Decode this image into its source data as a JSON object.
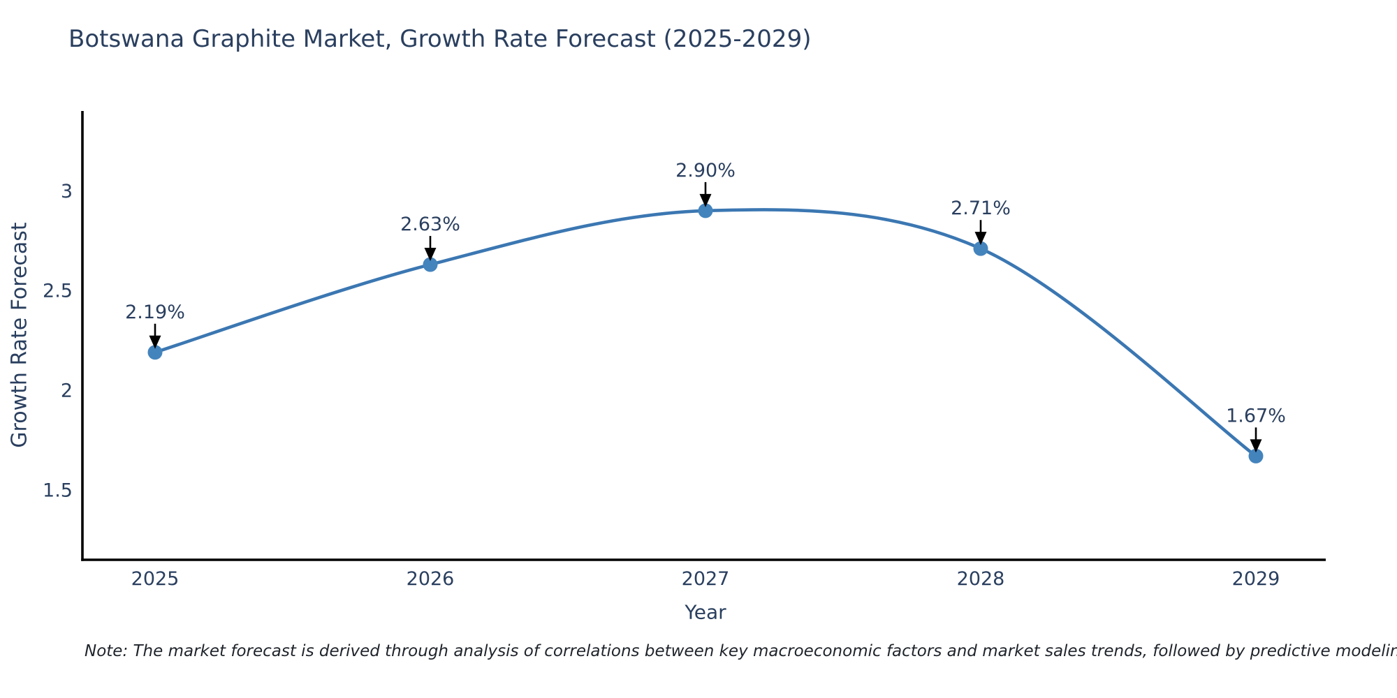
{
  "title": "Botswana Graphite Market, Growth Rate Forecast (2025-2029)",
  "note": "Note: The market forecast is derived through analysis of correlations between key macroeconomic factors and market sales trends, followed by predictive modeling to project future sales",
  "colors": {
    "title_text": "#2a3f5f",
    "tick_text": "#2a3f5f",
    "axis_line": "#000000",
    "series_line": "#3b77b2",
    "marker_fill": "#4484bd",
    "annotation_text": "#2a3f5f",
    "annotation_arrow": "#000000",
    "background": "#ffffff"
  },
  "chart_data": {
    "type": "line",
    "title": "Botswana Graphite Market, Growth Rate Forecast (2025-2029)",
    "x": [
      "2025",
      "2026",
      "2027",
      "2028",
      "2029"
    ],
    "values": [
      2.19,
      2.63,
      2.9,
      2.71,
      1.67
    ],
    "point_labels": [
      "2.19%",
      "2.63%",
      "2.90%",
      "2.71%",
      "1.67%"
    ],
    "xlabel": "Year",
    "ylabel": "Growth Rate Forecast",
    "yticks": [
      1.5,
      2,
      2.5,
      3
    ],
    "ylim": [
      1.15,
      3.4
    ],
    "line_shape": "spline",
    "grid": false,
    "legend_position": "none",
    "annotations": "value labels with downward arrows pointing at each data point"
  }
}
